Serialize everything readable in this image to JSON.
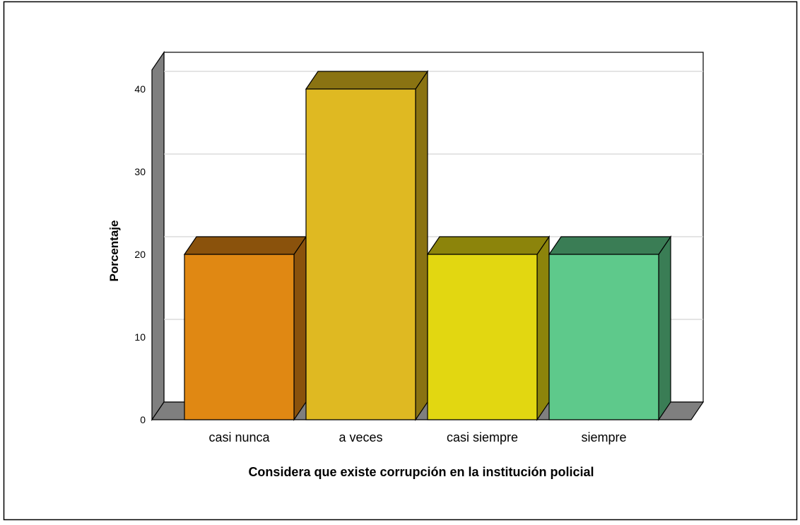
{
  "chart_data": {
    "type": "bar",
    "style": "3d",
    "categories": [
      "casi nunca",
      "a veces",
      "casi siempre",
      "siempre"
    ],
    "values": [
      20,
      40,
      20,
      20
    ],
    "xlabel": "Considera que existe corrupción en la institución policial",
    "ylabel": "Porcentaje",
    "ylim": [
      0,
      42
    ],
    "yticks": [
      0,
      10,
      20,
      30,
      40
    ],
    "grid": true,
    "legend": "none",
    "colors": {
      "front": [
        "#e08813",
        "#dfb922",
        "#e2d711",
        "#5ec98b"
      ],
      "top": [
        "#8a520c",
        "#8a7312",
        "#8c840b",
        "#3a7d55"
      ],
      "side": [
        "#8a520c",
        "#8a7312",
        "#8c840b",
        "#3a7d55"
      ],
      "wall": "#7f7f7f"
    }
  }
}
